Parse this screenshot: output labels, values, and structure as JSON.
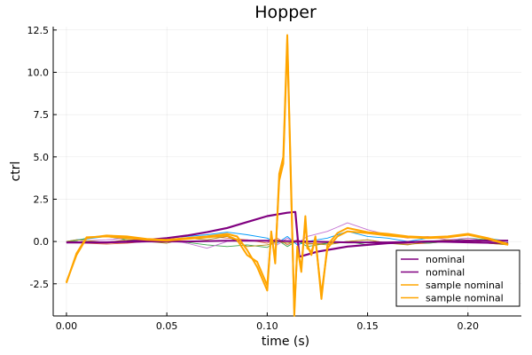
{
  "chart_data": {
    "type": "line",
    "title": "Hopper",
    "xlabel": "time (s)",
    "ylabel": "ctrl",
    "xlim": [
      -0.0066,
      0.2266
    ],
    "ylim": [
      -4.4,
      12.7
    ],
    "xticks": [
      0.0,
      0.05,
      0.1,
      0.15,
      0.2
    ],
    "xtick_labels": [
      "0.00",
      "0.05",
      "0.10",
      "0.15",
      "0.20"
    ],
    "yticks": [
      -2.5,
      0.0,
      2.5,
      5.0,
      7.5,
      10.0,
      12.5
    ],
    "ytick_labels": [
      "-2.5",
      "0.0",
      "2.5",
      "5.0",
      "7.5",
      "10.0",
      "12.5"
    ],
    "grid": true,
    "legend_position": "bottom-right",
    "legend": [
      {
        "label": "nominal",
        "color": "#800080"
      },
      {
        "label": "nominal",
        "color": "#800080"
      },
      {
        "label": "sample nominal",
        "color": "#FFA500"
      },
      {
        "label": "sample nominal",
        "color": "#FFA500"
      }
    ],
    "background_series": [
      {
        "color": "#009AFA",
        "x": [
          0.0,
          0.005,
          0.01,
          0.02,
          0.03,
          0.04,
          0.05,
          0.06,
          0.07,
          0.08,
          0.09,
          0.1,
          0.105,
          0.11,
          0.115,
          0.12,
          0.13,
          0.14,
          0.15,
          0.16,
          0.17,
          0.18,
          0.19,
          0.2,
          0.21,
          0.22
        ],
        "y": [
          0.0,
          0.1,
          0.15,
          0.3,
          0.25,
          0.1,
          0.2,
          0.3,
          0.4,
          0.55,
          0.4,
          0.2,
          -0.1,
          0.3,
          -0.2,
          0.0,
          0.2,
          0.6,
          0.3,
          0.2,
          0.0,
          0.2,
          0.3,
          0.4,
          0.2,
          0.0
        ]
      },
      {
        "color": "#E36F47",
        "x": [
          0.0,
          0.005,
          0.01,
          0.02,
          0.03,
          0.04,
          0.05,
          0.06,
          0.07,
          0.08,
          0.09,
          0.1,
          0.105,
          0.11,
          0.115,
          0.12,
          0.13,
          0.14,
          0.15,
          0.16,
          0.17,
          0.18,
          0.19,
          0.2,
          0.21,
          0.22
        ],
        "y": [
          0.0,
          -0.05,
          -0.1,
          -0.15,
          -0.1,
          0.0,
          0.1,
          0.2,
          0.3,
          0.2,
          0.1,
          -0.1,
          0.2,
          -0.2,
          0.1,
          -0.15,
          -0.1,
          0.0,
          0.1,
          -0.1,
          -0.15,
          -0.1,
          0.0,
          0.1,
          -0.1,
          -0.2
        ]
      },
      {
        "color": "#3EA44E",
        "x": [
          0.0,
          0.005,
          0.01,
          0.02,
          0.03,
          0.04,
          0.05,
          0.06,
          0.07,
          0.08,
          0.09,
          0.1,
          0.105,
          0.11,
          0.115,
          0.12,
          0.13,
          0.14,
          0.15,
          0.16,
          0.17,
          0.18,
          0.19,
          0.2,
          0.21,
          0.22
        ],
        "y": [
          0.0,
          0.05,
          0.2,
          0.3,
          0.1,
          0.05,
          0.0,
          -0.05,
          -0.2,
          -0.3,
          -0.2,
          -0.35,
          0.1,
          -0.3,
          0.05,
          -0.3,
          -0.1,
          0.0,
          -0.2,
          -0.1,
          0.0,
          -0.1,
          0.0,
          0.2,
          0.1,
          -0.1
        ]
      },
      {
        "color": "#C271D2",
        "x": [
          0.0,
          0.005,
          0.01,
          0.02,
          0.03,
          0.04,
          0.05,
          0.06,
          0.07,
          0.08,
          0.09,
          0.1,
          0.105,
          0.11,
          0.115,
          0.12,
          0.13,
          0.14,
          0.15,
          0.16,
          0.17,
          0.18,
          0.19,
          0.2,
          0.21,
          0.22
        ],
        "y": [
          0.0,
          -0.05,
          0.05,
          0.1,
          0.2,
          0.15,
          0.1,
          -0.1,
          -0.4,
          0.0,
          0.1,
          0.0,
          -0.2,
          0.2,
          -0.1,
          0.3,
          0.6,
          1.1,
          0.7,
          0.4,
          0.2,
          0.3,
          0.1,
          0.2,
          0.0,
          -0.15
        ]
      },
      {
        "color": "#AC8D18",
        "x": [
          0.0,
          0.005,
          0.01,
          0.02,
          0.03,
          0.04,
          0.05,
          0.06,
          0.07,
          0.08,
          0.09,
          0.1,
          0.105,
          0.11,
          0.115,
          0.12,
          0.13,
          0.14,
          0.15,
          0.16,
          0.17,
          0.18,
          0.19,
          0.2,
          0.21,
          0.22
        ],
        "y": [
          0.0,
          0.1,
          0.05,
          -0.05,
          0.1,
          0.0,
          -0.1,
          0.2,
          0.1,
          0.3,
          -0.3,
          -0.2,
          0.0,
          -0.1,
          0.0,
          -0.1,
          -0.2,
          0.0,
          0.1,
          -0.1,
          -0.2,
          0.0,
          0.1,
          0.0,
          -0.1,
          -0.2
        ]
      }
    ],
    "series": [
      {
        "name": "nominal",
        "color": "#800080",
        "width": 2.2,
        "x": [
          0.0,
          0.01,
          0.02,
          0.03,
          0.04,
          0.05,
          0.06,
          0.07,
          0.08,
          0.09,
          0.1,
          0.11,
          0.114,
          0.116,
          0.125,
          0.14,
          0.16,
          0.18,
          0.2,
          0.22
        ],
        "y": [
          -0.05,
          -0.05,
          -0.05,
          0.0,
          0.1,
          0.2,
          0.35,
          0.55,
          0.8,
          1.15,
          1.5,
          1.7,
          1.75,
          -0.9,
          -0.6,
          -0.3,
          -0.1,
          0.0,
          0.05,
          0.05
        ]
      },
      {
        "name": "nominal",
        "color": "#800080",
        "width": 2.0,
        "x": [
          0.0,
          0.02,
          0.04,
          0.06,
          0.08,
          0.1,
          0.12,
          0.14,
          0.16,
          0.18,
          0.2,
          0.22
        ],
        "y": [
          -0.05,
          -0.05,
          0.0,
          0.0,
          0.05,
          0.05,
          0.0,
          -0.05,
          -0.05,
          0.0,
          -0.05,
          -0.1
        ]
      },
      {
        "name": "sample nominal",
        "color": "#FFA500",
        "width": 2.0,
        "x": [
          0.0,
          0.005,
          0.01,
          0.02,
          0.03,
          0.04,
          0.05,
          0.06,
          0.07,
          0.08,
          0.085,
          0.09,
          0.095,
          0.1,
          0.102,
          0.104,
          0.106,
          0.108,
          0.11,
          0.112,
          0.1135,
          0.115,
          0.117,
          0.119,
          0.12,
          0.122,
          0.124,
          0.127,
          0.13,
          0.135,
          0.14,
          0.15,
          0.16,
          0.17,
          0.18,
          0.19,
          0.2,
          0.21,
          0.22
        ],
        "y": [
          -2.4,
          -0.8,
          0.2,
          0.35,
          0.3,
          0.15,
          0.1,
          0.2,
          0.3,
          0.45,
          0.3,
          -0.5,
          -1.5,
          -2.9,
          0.6,
          -1.3,
          4.0,
          5.0,
          12.2,
          3.0,
          -4.4,
          -0.3,
          -1.8,
          1.5,
          -0.2,
          -0.8,
          0.3,
          -3.4,
          -0.2,
          0.5,
          0.8,
          0.55,
          0.45,
          0.3,
          0.25,
          0.3,
          0.45,
          0.2,
          -0.15
        ]
      },
      {
        "name": "sample nominal",
        "color": "#FFA500",
        "width": 2.0,
        "x": [
          0.0,
          0.005,
          0.01,
          0.02,
          0.03,
          0.04,
          0.05,
          0.06,
          0.07,
          0.08,
          0.085,
          0.09,
          0.095,
          0.1,
          0.102,
          0.104,
          0.106,
          0.108,
          0.11,
          0.112,
          0.1135,
          0.115,
          0.117,
          0.119,
          0.12,
          0.122,
          0.124,
          0.127,
          0.13,
          0.135,
          0.14,
          0.15,
          0.16,
          0.17,
          0.18,
          0.19,
          0.2,
          0.21,
          0.22
        ],
        "y": [
          -2.45,
          -0.7,
          0.25,
          0.3,
          0.2,
          0.1,
          0.05,
          0.15,
          0.25,
          0.35,
          0.1,
          -0.8,
          -1.2,
          -2.6,
          0.4,
          -1.0,
          3.6,
          4.6,
          11.8,
          2.6,
          -4.0,
          -0.5,
          -1.5,
          1.2,
          -0.4,
          -0.6,
          0.1,
          -3.1,
          -0.4,
          0.3,
          0.6,
          0.5,
          0.35,
          0.25,
          0.2,
          0.25,
          0.4,
          0.15,
          -0.2
        ]
      }
    ]
  }
}
